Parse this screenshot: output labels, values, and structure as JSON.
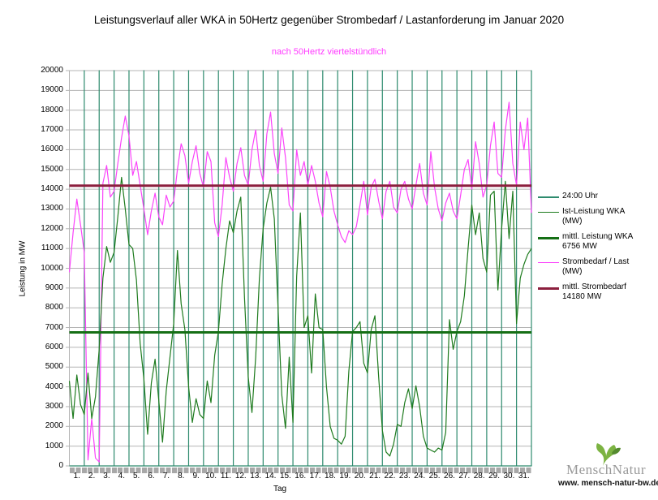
{
  "chart": {
    "title": "Leistungsverlauf aller WKA in 50Hertz gegenüber  Strombedarf / Lastanforderung im Januar 2020",
    "subtitle": "nach 50Hertz viertelstündlich",
    "subtitle_color": "#ff3cff",
    "ylabel": "Leistung in MW",
    "xlabel": "Tag"
  },
  "chart_data": {
    "type": "line",
    "title": "Leistungsverlauf aller WKA in 50Hertz gegenüber  Strombedarf / Lastanforderung im Januar 2020",
    "subtitle": "nach 50Hertz viertelstündlich",
    "xlabel": "Tag",
    "ylabel": "Leistung in MW",
    "x_unit_days": true,
    "x_start": 0,
    "x_step": 0.25,
    "x_max": 31,
    "ylim": [
      0,
      20000
    ],
    "y_tick_step": 1000,
    "yticks": [
      0,
      1000,
      2000,
      3000,
      4000,
      5000,
      6000,
      7000,
      8000,
      9000,
      10000,
      11000,
      12000,
      13000,
      14000,
      15000,
      16000,
      17000,
      18000,
      19000,
      20000
    ],
    "xticks": [
      "1.",
      "2.",
      "3.",
      "4.",
      "5.",
      "6.",
      "7.",
      "8.",
      "9.",
      "10.",
      "11.",
      "12.",
      "13.",
      "14.",
      "15.",
      "16.",
      "17.",
      "18.",
      "19.",
      "20.",
      "21.",
      "22.",
      "23.",
      "24.",
      "25.",
      "26.",
      "27.",
      "28.",
      "29.",
      "30.",
      "31."
    ],
    "grid_color": "#b4b4b4",
    "legend_position": "right",
    "series": [
      {
        "name": "24:00 Uhr",
        "kind": "midnight-marker",
        "color": "#2e8b6e",
        "width": 1.2,
        "note": "vertical line from 0 to 20000 at every midnight (day boundary), baseline along 0"
      },
      {
        "name": "Ist-Leistung WKA (MW)",
        "kind": "curve",
        "color": "#1e7b1e",
        "width": 1.2,
        "values": [
          4300,
          2400,
          4600,
          3100,
          2600,
          4700,
          2400,
          3500,
          5900,
          9500,
          11100,
          10300,
          10800,
          12600,
          14600,
          13000,
          11200,
          11000,
          9400,
          6200,
          4400,
          1600,
          4200,
          5400,
          3300,
          1200,
          3800,
          5500,
          7200,
          10900,
          8200,
          6900,
          4000,
          2200,
          3400,
          2600,
          2400,
          4300,
          3200,
          5600,
          6800,
          9200,
          11000,
          12400,
          11800,
          12900,
          13600,
          8500,
          4500,
          2700,
          5500,
          9500,
          12000,
          13300,
          14100,
          12500,
          8000,
          3600,
          1900,
          5500,
          2200,
          9600,
          12800,
          7000,
          7600,
          4700,
          8700,
          7000,
          6900,
          4000,
          2000,
          1400,
          1300,
          1100,
          1500,
          4800,
          6800,
          7000,
          7300,
          5200,
          4700,
          6900,
          7600,
          4500,
          1800,
          700,
          500,
          1100,
          2100,
          2000,
          3200,
          3900,
          2900,
          4050,
          3000,
          1500,
          900,
          800,
          700,
          900,
          800,
          1700,
          7400,
          5900,
          6800,
          7300,
          8600,
          11000,
          13200,
          11700,
          12800,
          10500,
          9800,
          13700,
          13900,
          8900,
          12000,
          14400,
          11500,
          13900,
          7200,
          9500,
          10200,
          10700,
          11000
        ]
      },
      {
        "name": "mittl. Leistung WKA 6756 MW",
        "kind": "constant",
        "color": "#156f15",
        "width": 3,
        "constant": 6756
      },
      {
        "name": "Strombedarf / Last (MW)",
        "kind": "curve",
        "color": "#fa44fa",
        "width": 1.2,
        "values": [
          9800,
          11800,
          13500,
          12200,
          10800,
          300,
          2400,
          400,
          200,
          14300,
          15200,
          13600,
          13900,
          15300,
          16600,
          17700,
          16700,
          14700,
          15400,
          14200,
          13000,
          11700,
          12900,
          13800,
          12600,
          12200,
          13700,
          13100,
          13400,
          15000,
          16300,
          15700,
          14300,
          15400,
          16200,
          14800,
          14100,
          15900,
          15400,
          12300,
          11600,
          13200,
          15600,
          14600,
          13900,
          15300,
          16100,
          14700,
          14200,
          16000,
          17000,
          15200,
          14400,
          16800,
          17900,
          15800,
          14800,
          17100,
          15600,
          13200,
          12900,
          16000,
          14700,
          15400,
          14200,
          15200,
          14400,
          13300,
          12600,
          14900,
          14100,
          12900,
          12200,
          11600,
          11300,
          11900,
          11700,
          12100,
          13200,
          14400,
          12700,
          14100,
          14500,
          13400,
          12500,
          13900,
          14400,
          13100,
          12800,
          14000,
          14400,
          13500,
          13000,
          14200,
          15300,
          13800,
          13200,
          15900,
          14100,
          13000,
          12400,
          13300,
          13800,
          12900,
          12500,
          13700,
          15000,
          15500,
          14000,
          16400,
          15300,
          13600,
          14200,
          16200,
          17400,
          14800,
          14600,
          17000,
          18400,
          15300,
          14200,
          17400,
          16000,
          17600,
          12800
        ]
      },
      {
        "name": "mittl. Strombedarf 14180 MW",
        "kind": "constant",
        "color": "#8c1f3e",
        "width": 3,
        "constant": 14180
      }
    ]
  },
  "legend": {
    "items": [
      {
        "lines": [
          "24:00 Uhr"
        ],
        "color": "#2e8b6e",
        "width": 1.5
      },
      {
        "lines": [
          "Ist-Leistung WKA",
          "(MW)"
        ],
        "color": "#1e7b1e",
        "width": 1.5
      },
      {
        "lines": [
          "mittl. Leistung WKA",
          "6756 MW"
        ],
        "color": "#156f15",
        "width": 3
      },
      {
        "lines": [
          "Strombedarf / Last",
          "(MW)"
        ],
        "color": "#fa44fa",
        "width": 1.5
      },
      {
        "lines": [
          "mittl. Strombedarf",
          "14180 MW"
        ],
        "color": "#8c1f3e",
        "width": 3
      }
    ]
  },
  "logo": {
    "brand_left": "Mensch",
    "brand_right": "Natur",
    "url": "www. mensch-natur-bw.de",
    "leaf_color": "#7cb342",
    "leaf_accent": "#558b2f"
  }
}
